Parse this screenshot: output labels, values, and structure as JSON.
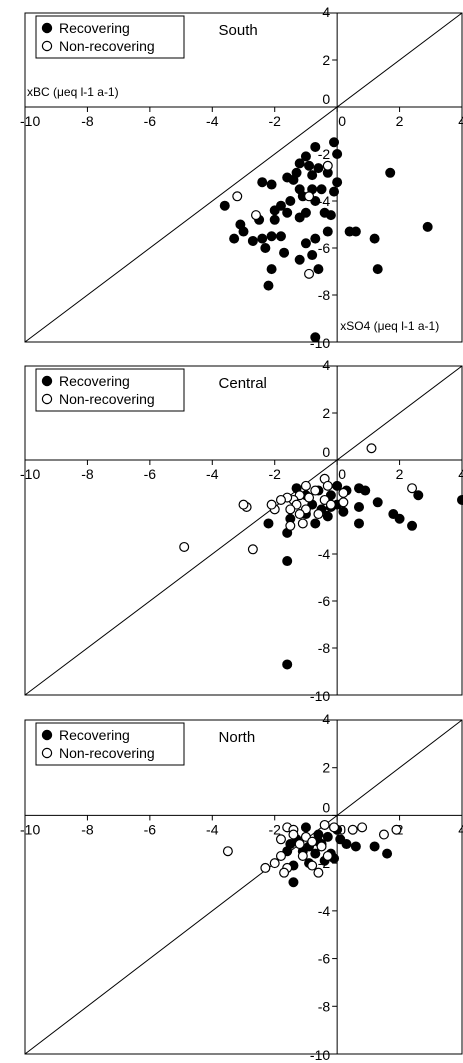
{
  "chart_data": [
    {
      "type": "scatter",
      "title": "South",
      "xlim": [
        -10,
        4
      ],
      "ylim": [
        -10,
        4
      ],
      "x_ticks": [
        -10,
        -8,
        -6,
        -4,
        -2,
        0,
        2,
        4
      ],
      "y_ticks": [
        4,
        2,
        0,
        -2,
        -4,
        -6,
        -8,
        -10
      ],
      "reference_line": "1:1",
      "legend": {
        "placement": "top-left",
        "entries": [
          "Recovering",
          "Non-recovering"
        ]
      },
      "ylabel": "xBC (μeq l-1 a-1)",
      "xlabel": "xSO4 (μeq l-1 a-1)",
      "series": [
        {
          "name": "Recovering",
          "marker": "filled-circle",
          "points": [
            [
              -0.1,
              -1.5
            ],
            [
              0.0,
              -2.0
            ],
            [
              -0.7,
              -1.7
            ],
            [
              -1.0,
              -2.1
            ],
            [
              -1.2,
              -2.4
            ],
            [
              -0.9,
              -2.5
            ],
            [
              -0.6,
              -2.6
            ],
            [
              -0.3,
              -2.8
            ],
            [
              -0.8,
              -2.9
            ],
            [
              -1.3,
              -2.8
            ],
            [
              -1.4,
              -3.1
            ],
            [
              -1.6,
              -3.0
            ],
            [
              -2.1,
              -3.3
            ],
            [
              -2.4,
              -3.2
            ],
            [
              -1.2,
              -3.5
            ],
            [
              -0.8,
              -3.5
            ],
            [
              -0.5,
              -3.5
            ],
            [
              -0.1,
              -3.6
            ],
            [
              0.0,
              -3.2
            ],
            [
              -1.1,
              -3.8
            ],
            [
              -0.7,
              -4.0
            ],
            [
              -1.5,
              -4.0
            ],
            [
              -1.8,
              -4.2
            ],
            [
              -2.0,
              -4.4
            ],
            [
              -0.4,
              -4.5
            ],
            [
              -1.0,
              -4.5
            ],
            [
              -1.2,
              -4.7
            ],
            [
              -1.6,
              -4.5
            ],
            [
              -2.0,
              -4.8
            ],
            [
              -2.5,
              -4.8
            ],
            [
              -3.1,
              -5.0
            ],
            [
              -3.3,
              -5.6
            ],
            [
              -3.0,
              -5.3
            ],
            [
              -3.6,
              -4.2
            ],
            [
              -2.7,
              -5.7
            ],
            [
              -2.4,
              -5.6
            ],
            [
              -2.1,
              -5.5
            ],
            [
              -1.8,
              -5.5
            ],
            [
              -2.3,
              -6.0
            ],
            [
              -1.7,
              -6.2
            ],
            [
              -1.0,
              -5.8
            ],
            [
              -0.7,
              -5.6
            ],
            [
              -0.3,
              -5.3
            ],
            [
              -0.2,
              -4.6
            ],
            [
              0.4,
              -5.3
            ],
            [
              0.6,
              -5.3
            ],
            [
              1.2,
              -5.6
            ],
            [
              1.7,
              -2.8
            ],
            [
              2.9,
              -5.1
            ],
            [
              -0.8,
              -6.3
            ],
            [
              -0.6,
              -6.9
            ],
            [
              -1.2,
              -6.5
            ],
            [
              -2.1,
              -6.9
            ],
            [
              -2.2,
              -7.6
            ],
            [
              1.3,
              -6.9
            ],
            [
              -0.7,
              -9.8
            ]
          ]
        },
        {
          "name": "Non-recovering",
          "marker": "open-circle",
          "points": [
            [
              -0.3,
              -2.5
            ],
            [
              -0.9,
              -3.8
            ],
            [
              -3.2,
              -3.8
            ],
            [
              -2.6,
              -4.6
            ],
            [
              -0.9,
              -7.1
            ]
          ]
        }
      ]
    },
    {
      "type": "scatter",
      "title": "Central",
      "xlim": [
        -10,
        4
      ],
      "ylim": [
        -10,
        4
      ],
      "x_ticks": [
        -10,
        -8,
        -6,
        -4,
        -2,
        0,
        2,
        4
      ],
      "y_ticks": [
        4,
        2,
        0,
        -2,
        -4,
        -6,
        -8,
        -10
      ],
      "reference_line": "1:1",
      "legend": {
        "placement": "top-left",
        "entries": [
          "Recovering",
          "Non-recovering"
        ]
      },
      "series": [
        {
          "name": "Recovering",
          "marker": "filled-circle",
          "points": [
            [
              -1.3,
              -1.2
            ],
            [
              -1.0,
              -1.5
            ],
            [
              -0.6,
              -1.3
            ],
            [
              -0.2,
              -1.5
            ],
            [
              0.0,
              -1.1
            ],
            [
              0.3,
              -1.3
            ],
            [
              0.7,
              -1.2
            ],
            [
              0.9,
              -1.3
            ],
            [
              -0.8,
              -1.9
            ],
            [
              -0.5,
              -2.1
            ],
            [
              -0.3,
              -2.4
            ],
            [
              0.0,
              -1.9
            ],
            [
              0.2,
              -2.2
            ],
            [
              0.7,
              -2.0
            ],
            [
              -1.0,
              -2.3
            ],
            [
              -1.5,
              -2.5
            ],
            [
              -0.7,
              -2.7
            ],
            [
              -2.2,
              -2.7
            ],
            [
              -1.6,
              -3.1
            ],
            [
              1.3,
              -1.8
            ],
            [
              1.8,
              -2.3
            ],
            [
              2.0,
              -2.5
            ],
            [
              2.6,
              -1.5
            ],
            [
              4.0,
              -1.7
            ],
            [
              2.4,
              -2.8
            ],
            [
              0.7,
              -2.7
            ],
            [
              -0.2,
              -2.0
            ],
            [
              -1.6,
              -4.3
            ],
            [
              -1.6,
              -8.7
            ]
          ]
        },
        {
          "name": "Non-recovering",
          "marker": "open-circle",
          "points": [
            [
              1.1,
              0.5
            ],
            [
              -0.4,
              -0.8
            ],
            [
              -1.0,
              -1.1
            ],
            [
              -0.7,
              -1.3
            ],
            [
              -0.3,
              -1.1
            ],
            [
              -1.2,
              -1.5
            ],
            [
              -0.9,
              -1.6
            ],
            [
              -1.4,
              -1.7
            ],
            [
              -1.6,
              -1.6
            ],
            [
              -1.8,
              -1.7
            ],
            [
              -1.3,
              -1.9
            ],
            [
              -0.4,
              -1.7
            ],
            [
              0.2,
              -1.8
            ],
            [
              -0.2,
              -1.9
            ],
            [
              -1.0,
              -2.1
            ],
            [
              -1.5,
              -2.1
            ],
            [
              -1.2,
              -2.3
            ],
            [
              -0.6,
              -2.3
            ],
            [
              -2.0,
              -2.1
            ],
            [
              -2.1,
              -1.9
            ],
            [
              -1.1,
              -2.7
            ],
            [
              -1.5,
              -2.8
            ],
            [
              -2.9,
              -2.0
            ],
            [
              -3.0,
              -1.9
            ],
            [
              -2.7,
              -3.8
            ],
            [
              -4.9,
              -3.7
            ],
            [
              2.4,
              -1.2
            ],
            [
              0.2,
              -1.4
            ]
          ]
        }
      ]
    },
    {
      "type": "scatter",
      "title": "North",
      "xlim": [
        -10,
        4
      ],
      "ylim": [
        -10,
        4
      ],
      "x_ticks": [
        -10,
        -8,
        -6,
        -4,
        -2,
        0,
        2,
        4
      ],
      "y_ticks": [
        4,
        2,
        0,
        -2,
        -4,
        -6,
        -8,
        -10
      ],
      "reference_line": "1:1",
      "legend": {
        "placement": "top-left",
        "entries": [
          "Recovering",
          "Non-recovering"
        ]
      },
      "series": [
        {
          "name": "Recovering",
          "marker": "filled-circle",
          "points": [
            [
              -1.0,
              -0.5
            ],
            [
              -0.6,
              -0.8
            ],
            [
              -1.3,
              -1.0
            ],
            [
              -0.3,
              -0.9
            ],
            [
              0.0,
              -0.6
            ],
            [
              0.1,
              -1.0
            ],
            [
              0.3,
              -1.2
            ],
            [
              -0.5,
              -1.2
            ],
            [
              -0.9,
              -1.3
            ],
            [
              -1.5,
              -1.2
            ],
            [
              -1.1,
              -1.5
            ],
            [
              -0.7,
              -1.6
            ],
            [
              -0.2,
              -1.6
            ],
            [
              -1.6,
              -1.5
            ],
            [
              -0.4,
              -1.9
            ],
            [
              -0.1,
              -1.8
            ],
            [
              -0.9,
              -2.0
            ],
            [
              -1.4,
              -2.1
            ],
            [
              0.6,
              -1.3
            ],
            [
              1.2,
              -1.3
            ],
            [
              1.6,
              -1.6
            ],
            [
              -1.4,
              -2.8
            ],
            [
              -0.6,
              -1.1
            ]
          ]
        },
        {
          "name": "Non-recovering",
          "marker": "open-circle",
          "points": [
            [
              -1.6,
              -0.5
            ],
            [
              -1.4,
              -0.6
            ],
            [
              -1.0,
              -0.9
            ],
            [
              -0.4,
              -0.4
            ],
            [
              -0.1,
              -0.5
            ],
            [
              0.5,
              -0.6
            ],
            [
              -1.8,
              -1.0
            ],
            [
              -1.2,
              -1.2
            ],
            [
              -0.8,
              -1.1
            ],
            [
              -0.5,
              -1.3
            ],
            [
              -1.8,
              -1.7
            ],
            [
              -1.6,
              -2.2
            ],
            [
              -1.1,
              -1.7
            ],
            [
              -0.8,
              -2.1
            ],
            [
              -0.6,
              -2.4
            ],
            [
              -2.0,
              -2.0
            ],
            [
              -2.3,
              -2.2
            ],
            [
              -3.5,
              -1.5
            ],
            [
              -1.7,
              -2.4
            ],
            [
              0.8,
              -0.5
            ],
            [
              1.5,
              -0.8
            ],
            [
              1.9,
              -0.6
            ],
            [
              -1.4,
              -0.8
            ],
            [
              -0.3,
              -1.7
            ]
          ]
        }
      ]
    }
  ]
}
